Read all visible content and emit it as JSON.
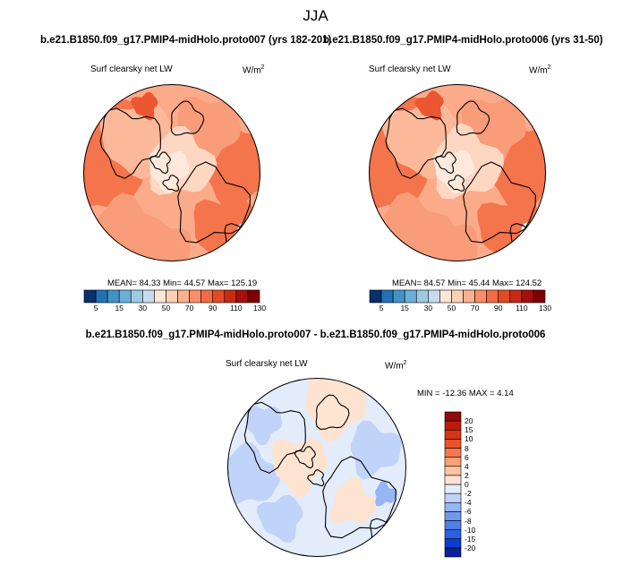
{
  "page": {
    "season": "JJA"
  },
  "chart_data": [
    {
      "type": "heatmap",
      "projection": "north-polar-stereographic",
      "title": "b.e21.B1850.f09_g17.PMIP4-midHolo.proto007 (yrs 182-201)",
      "variable": "Surf clearsky net LW",
      "units": "W/m",
      "units_exp": "2",
      "stats": {
        "mean_label": "MEAN=",
        "mean": "84.33",
        "min_label": "Min=",
        "min": "44.57",
        "max_label": "Max=",
        "max": "125.19"
      },
      "colorbar": {
        "orientation": "horizontal",
        "ticks": [
          "5",
          "15",
          "30",
          "50",
          "70",
          "90",
          "110",
          "130"
        ],
        "colors": [
          "#08306b",
          "#2171b5",
          "#4292c6",
          "#6baed6",
          "#9ecae1",
          "#c6dbef",
          "#fee6d5",
          "#fdd0b3",
          "#fcb08e",
          "#fc8d67",
          "#f46a43",
          "#e34a26",
          "#c62a14",
          "#a50f0e",
          "#7f0000"
        ]
      }
    },
    {
      "type": "heatmap",
      "projection": "north-polar-stereographic",
      "title": "b.e21.B1850.f09_g17.PMIP4-midHolo.proto006 (yrs 31-50)",
      "variable": "Surf clearsky net LW",
      "units": "W/m",
      "units_exp": "2",
      "stats": {
        "mean_label": "MEAN=",
        "mean": "84.57",
        "min_label": "Min=",
        "min": "45.44",
        "max_label": "Max=",
        "max": "124.52"
      },
      "colorbar": {
        "orientation": "horizontal",
        "ticks": [
          "5",
          "15",
          "30",
          "50",
          "70",
          "90",
          "110",
          "130"
        ],
        "colors": [
          "#08306b",
          "#2171b5",
          "#4292c6",
          "#6baed6",
          "#9ecae1",
          "#c6dbef",
          "#fee6d5",
          "#fdd0b3",
          "#fcb08e",
          "#fc8d67",
          "#f46a43",
          "#e34a26",
          "#c62a14",
          "#a50f0e",
          "#7f0000"
        ]
      }
    },
    {
      "type": "heatmap",
      "projection": "north-polar-stereographic",
      "title": "b.e21.B1850.f09_g17.PMIP4-midHolo.proto007 - b.e21.B1850.f09_g17.PMIP4-midHolo.proto006",
      "variable": "Surf clearsky net LW",
      "units": "W/m",
      "units_exp": "2",
      "stats": {
        "min_label": "MIN =",
        "min": "-12.36",
        "max_label": "MAX =",
        "max": "4.14"
      },
      "colorbar": {
        "orientation": "vertical",
        "ticks": [
          "-20",
          "-15",
          "-10",
          "-8",
          "-6",
          "-4",
          "-2",
          "0",
          "2",
          "4",
          "6",
          "8",
          "10",
          "15",
          "20"
        ],
        "colors": [
          "#08209c",
          "#0a3cd0",
          "#2e5fe0",
          "#4f7fe8",
          "#7098ee",
          "#96b5f4",
          "#c0d3f8",
          "#e3ecfb",
          "#fde3d0",
          "#fcc4a4",
          "#fb9f76",
          "#f7774a",
          "#ec5228",
          "#d93514",
          "#bb1c0e",
          "#8f0a0a"
        ]
      }
    }
  ]
}
